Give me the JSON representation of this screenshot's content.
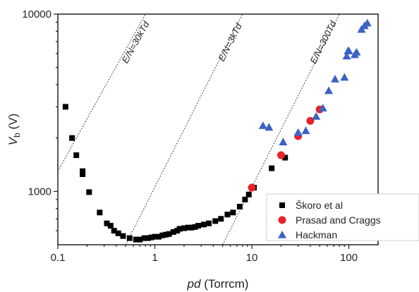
{
  "chart_data": {
    "type": "scatter",
    "x_scale": "log",
    "y_scale": "log",
    "xlim": [
      0.1,
      200
    ],
    "ylim": [
      500,
      10000
    ],
    "x_ticks": [
      {
        "value": 0.1,
        "label": "0.1"
      },
      {
        "value": 1,
        "label": "1"
      },
      {
        "value": 10,
        "label": "10"
      },
      {
        "value": 100,
        "label": "100"
      }
    ],
    "y_ticks": [
      {
        "value": 1000,
        "label": "1000"
      },
      {
        "value": 10000,
        "label": "10000"
      }
    ],
    "xlabel": {
      "italic": "pd",
      "rest": " (Torrcm)"
    },
    "ylabel": {
      "main": "V",
      "sub": "b",
      "rest": " (V)"
    },
    "grid": false,
    "legend_position": "bottom-right",
    "series": [
      {
        "name": "Škoro et al",
        "marker": "square",
        "color": "#000000",
        "points": [
          [
            0.12,
            3000
          ],
          [
            0.14,
            2000
          ],
          [
            0.155,
            1600
          ],
          [
            0.18,
            1300
          ],
          [
            0.18,
            1250
          ],
          [
            0.21,
            990
          ],
          [
            0.27,
            760
          ],
          [
            0.32,
            660
          ],
          [
            0.35,
            640
          ],
          [
            0.38,
            600
          ],
          [
            0.42,
            580
          ],
          [
            0.47,
            560
          ],
          [
            0.55,
            545
          ],
          [
            0.64,
            535
          ],
          [
            0.7,
            535
          ],
          [
            0.78,
            545
          ],
          [
            0.85,
            545
          ],
          [
            0.92,
            550
          ],
          [
            1.0,
            555
          ],
          [
            1.1,
            555
          ],
          [
            1.2,
            565
          ],
          [
            1.3,
            570
          ],
          [
            1.4,
            575
          ],
          [
            1.55,
            590
          ],
          [
            1.7,
            600
          ],
          [
            1.8,
            615
          ],
          [
            2.0,
            620
          ],
          [
            2.2,
            625
          ],
          [
            2.4,
            625
          ],
          [
            2.6,
            630
          ],
          [
            2.8,
            640
          ],
          [
            3.2,
            650
          ],
          [
            3.6,
            660
          ],
          [
            4.2,
            680
          ],
          [
            4.8,
            700
          ],
          [
            5.6,
            740
          ],
          [
            6.4,
            760
          ],
          [
            7.5,
            820
          ],
          [
            8.5,
            900
          ],
          [
            9.3,
            960
          ],
          [
            10.5,
            1050
          ],
          [
            16,
            1350
          ],
          [
            22,
            1550
          ]
        ]
      },
      {
        "name": "Prasad and Craggs",
        "marker": "circle",
        "color": "#e8222b",
        "points": [
          [
            10,
            1050
          ],
          [
            20,
            1600
          ],
          [
            30,
            2050
          ],
          [
            40,
            2500
          ],
          [
            50,
            2900
          ]
        ]
      },
      {
        "name": "Hackman",
        "marker": "triangle",
        "color": "#3b62c4",
        "points": [
          [
            13,
            2350
          ],
          [
            15,
            2300
          ],
          [
            21,
            1900
          ],
          [
            30,
            2150
          ],
          [
            36,
            2200
          ],
          [
            46,
            2650
          ],
          [
            54,
            2950
          ],
          [
            62,
            3700
          ],
          [
            72,
            4300
          ],
          [
            90,
            4400
          ],
          [
            95,
            5800
          ],
          [
            98,
            6200
          ],
          [
            100,
            6200
          ],
          [
            115,
            5900
          ],
          [
            120,
            6100
          ],
          [
            135,
            8200
          ],
          [
            145,
            8600
          ],
          [
            155,
            8900
          ]
        ]
      }
    ],
    "reference_lines": [
      {
        "label": "E/N=30kTd",
        "points": [
          [
            0.1,
            1300
          ],
          [
            0.8,
            10000
          ]
        ]
      },
      {
        "label": "E/N=3kTd",
        "points": [
          [
            0.5,
            500
          ],
          [
            8,
            10000
          ]
        ]
      },
      {
        "label": "E/N=300Td",
        "points": [
          [
            5,
            500
          ],
          [
            80,
            10000
          ]
        ]
      }
    ],
    "legend": [
      "Škoro et al",
      "Prasad and Craggs",
      "Hackman"
    ]
  }
}
